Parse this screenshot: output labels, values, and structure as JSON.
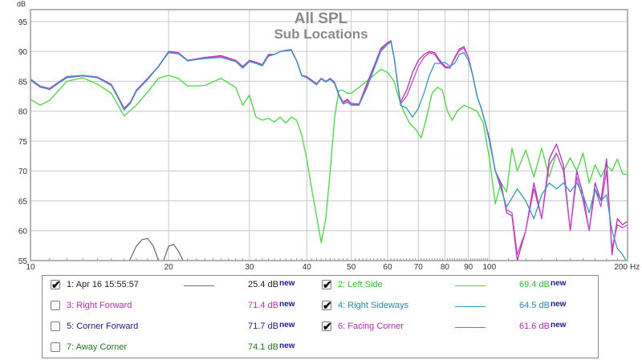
{
  "chart_data": {
    "type": "line",
    "title": "All SPL",
    "subtitle": "Sub Locations",
    "ylabel": "dB",
    "xlabel": "Hz",
    "x_scale": "log",
    "xlim": [
      10,
      200
    ],
    "ylim": [
      55,
      97
    ],
    "grid": true,
    "x_ticks": [
      10,
      20,
      30,
      40,
      50,
      60,
      70,
      80,
      90,
      100,
      200
    ],
    "x_tick_labels": [
      "10",
      "20",
      "30",
      "40",
      "50",
      "60",
      "70",
      "80",
      "90",
      "100",
      "200"
    ],
    "x_minor_ticks": [
      30,
      40,
      50,
      60,
      70,
      80,
      90
    ],
    "y_ticks": [
      55,
      60,
      65,
      70,
      75,
      80,
      85,
      90,
      95
    ],
    "y_tick_labels": [
      "55",
      "60",
      "65",
      "70",
      "75",
      "80",
      "85",
      "90",
      "95"
    ],
    "series": [
      {
        "name": "Apr 16 15:55:57",
        "color": "#707070",
        "x": [
          16.2,
          17.0,
          17.5,
          18.0,
          18.5,
          19.0,
          19.3,
          19.6,
          20.0,
          20.5,
          21.0,
          21.5,
          22.0
        ],
        "y": [
          54.0,
          57.4,
          58.5,
          58.7,
          57.5,
          55.0,
          53.8,
          55.5,
          57.4,
          57.7,
          56.6,
          55.0,
          53.8
        ]
      },
      {
        "name": "Left Side",
        "color": "#3fe03a",
        "x": [
          10,
          10.5,
          11,
          12,
          13,
          14,
          15,
          16,
          17,
          18,
          19,
          20,
          21,
          22,
          24,
          26,
          28,
          29,
          30,
          31,
          32,
          33,
          34,
          35,
          36,
          37,
          38,
          39,
          40,
          41,
          42,
          43,
          44,
          45,
          46,
          47,
          48,
          49,
          50,
          52,
          54,
          56,
          58,
          60,
          62,
          63,
          65,
          67,
          69,
          71,
          73,
          75,
          77,
          79,
          81,
          83,
          85,
          88,
          91,
          94,
          97,
          100,
          103,
          106,
          109,
          112,
          115,
          120,
          125,
          130,
          135,
          140,
          145,
          150,
          155,
          160,
          165,
          170,
          175,
          180,
          185,
          190,
          195,
          200
        ],
        "y": [
          82,
          81,
          81.8,
          85,
          85.6,
          84.5,
          83,
          79.2,
          81,
          83.2,
          85.5,
          86,
          85.5,
          84.2,
          84.3,
          85.5,
          84,
          81,
          82.7,
          79,
          78.5,
          78.8,
          78.2,
          79,
          78,
          79,
          78.5,
          76,
          72,
          67,
          62.5,
          58,
          62,
          70,
          79,
          83.5,
          83.5,
          83,
          83,
          84,
          85,
          86,
          87,
          86.5,
          85,
          83,
          80,
          78,
          77,
          75.5,
          79,
          83,
          84,
          83.5,
          80,
          78.5,
          80,
          81,
          80.5,
          80,
          78,
          72,
          64.5,
          68,
          66.5,
          73.8,
          70,
          73.5,
          69,
          73.8,
          69,
          73,
          70,
          72.2,
          70,
          73,
          68,
          71,
          69,
          71,
          70,
          72,
          69.5,
          69.4
        ]
      },
      {
        "name": "Right Forward",
        "color": "#b92db9",
        "x": [
          10,
          10.5,
          11,
          12,
          13,
          14,
          15,
          15.5,
          16,
          16.5,
          17,
          18,
          19,
          20,
          21,
          22,
          24,
          26,
          28,
          29,
          30,
          31,
          32,
          33,
          34,
          35,
          36,
          37,
          38,
          39,
          40,
          41,
          42,
          43,
          44,
          45,
          46,
          47,
          48,
          49,
          50,
          52,
          54,
          56,
          58,
          60,
          61,
          62,
          63,
          64,
          66,
          68,
          70,
          72,
          74,
          76,
          78,
          80,
          82,
          84,
          86,
          88,
          90,
          92,
          94,
          96,
          98,
          100,
          103,
          106,
          109,
          112,
          115,
          120,
          125,
          130,
          135,
          140,
          145,
          150,
          155,
          160,
          165,
          170,
          175,
          180,
          185,
          190,
          195,
          200
        ],
        "y": [
          85.3,
          84.2,
          83.8,
          85.8,
          86,
          85.7,
          84.5,
          82.5,
          80.5,
          81.5,
          83.5,
          85.5,
          87.5,
          90,
          89.8,
          88.5,
          89,
          89.3,
          88.5,
          87.5,
          88.5,
          88.2,
          87.8,
          89.5,
          89.5,
          90,
          90.2,
          90.3,
          88.5,
          86,
          85.8,
          85.2,
          84.6,
          85.5,
          85,
          85.5,
          84.8,
          82.8,
          81.5,
          82,
          81.3,
          81.2,
          84.5,
          87.5,
          90.5,
          91.5,
          91.8,
          89,
          85,
          81.5,
          83.5,
          86.5,
          88.5,
          89.5,
          90,
          89.8,
          88.5,
          87.5,
          87.3,
          89,
          90.4,
          90.8,
          89,
          86,
          82.5,
          80.5,
          78,
          75.5,
          70,
          68,
          63,
          62.5,
          55,
          60,
          68,
          62,
          72,
          74.5,
          71,
          60,
          70,
          66,
          60,
          68,
          65,
          72,
          56,
          62,
          61,
          61.6
        ]
      },
      {
        "name": "Right Sideways",
        "color": "#2b9ec2",
        "x": [
          10,
          10.5,
          11,
          12,
          13,
          14,
          15,
          15.5,
          16,
          16.5,
          17,
          18,
          19,
          20,
          21,
          22,
          24,
          26,
          28,
          29,
          30,
          31,
          32,
          33,
          34,
          35,
          36,
          37,
          38,
          39,
          40,
          41,
          42,
          43,
          44,
          45,
          46,
          47,
          48,
          49,
          50,
          52,
          54,
          56,
          58,
          60,
          61,
          62,
          63,
          64,
          66,
          68,
          70,
          72,
          74,
          76,
          78,
          80,
          82,
          84,
          86,
          88,
          90,
          92,
          94,
          96,
          98,
          100,
          103,
          106,
          109,
          112,
          115,
          120,
          125,
          130,
          135,
          140,
          145,
          150,
          155,
          160,
          165,
          170,
          175,
          180,
          185,
          190,
          195,
          200
        ],
        "y": [
          85.4,
          84.2,
          83.6,
          85.7,
          86,
          85.6,
          84.3,
          82.3,
          80.2,
          81.3,
          83.3,
          85.3,
          87.5,
          89.8,
          89.6,
          88.5,
          88.8,
          89,
          88.3,
          87.2,
          88.3,
          88,
          87.6,
          89.2,
          89.5,
          90,
          90.1,
          90.2,
          88.5,
          86,
          85.6,
          85,
          84.4,
          85.4,
          85,
          85.3,
          84.6,
          82.6,
          81.2,
          81.5,
          81,
          81,
          83.8,
          87,
          90,
          91.2,
          91.6,
          89,
          85,
          81,
          80.5,
          79,
          80.5,
          83,
          86,
          88,
          88,
          88.2,
          87.5,
          88,
          89.5,
          89.8,
          88.5,
          86,
          82.5,
          80.5,
          78,
          75,
          70,
          67,
          64,
          65.5,
          67,
          65,
          62,
          66,
          68,
          67,
          68,
          66.5,
          68,
          66,
          63,
          67,
          65,
          66,
          60,
          57,
          56,
          54.5
        ]
      },
      {
        "name": "Facing Corner",
        "color": "#cf45cf",
        "x": [
          10,
          10.5,
          11,
          12,
          13,
          14,
          15,
          15.5,
          16,
          16.5,
          17,
          18,
          19,
          20,
          21,
          22,
          24,
          26,
          28,
          29,
          30,
          31,
          32,
          33,
          34,
          35,
          36,
          37,
          38,
          39,
          40,
          41,
          42,
          43,
          44,
          45,
          46,
          47,
          48,
          49,
          50,
          52,
          54,
          56,
          58,
          60,
          61,
          62,
          63,
          64,
          66,
          68,
          70,
          72,
          74,
          76,
          78,
          80,
          82,
          84,
          86,
          88,
          90,
          92,
          94,
          96,
          98,
          100,
          103,
          106,
          109,
          112,
          115,
          120,
          125,
          130,
          135,
          140,
          145,
          150,
          155,
          160,
          165,
          170,
          175,
          180,
          185,
          190,
          195,
          200
        ],
        "y": [
          85.2,
          84,
          83.7,
          85.6,
          85.9,
          85.6,
          84.4,
          82.4,
          80.4,
          81.4,
          83.4,
          85.4,
          87.4,
          89.9,
          89.7,
          88.4,
          88.9,
          89.2,
          88.4,
          87.4,
          88.4,
          88.1,
          87.7,
          89.3,
          89.5,
          90,
          90.2,
          90.2,
          88.4,
          85.9,
          85.7,
          85.1,
          84.5,
          85.4,
          84.9,
          85.4,
          84.7,
          82.7,
          81.4,
          81.8,
          81.2,
          81.1,
          84.2,
          87.3,
          90.3,
          91.4,
          91.7,
          89,
          85,
          81.2,
          82.5,
          85,
          87.5,
          89,
          89.8,
          89.5,
          88.2,
          87.3,
          87.2,
          88.8,
          90.2,
          90.5,
          89,
          86,
          82.5,
          80.5,
          78,
          75.2,
          70,
          67.5,
          63.5,
          63,
          56,
          60,
          67,
          62,
          71,
          73,
          70,
          60,
          69,
          65,
          60,
          67,
          64,
          70,
          57,
          61,
          60.5,
          61
        ]
      }
    ],
    "legend_position": "below"
  },
  "legend": [
    {
      "index": "1:",
      "name": "Apr 16 15:55:57",
      "checked": true,
      "value": "25.4 dB",
      "new": "new",
      "text_color": "#222222",
      "line_color": "#707070"
    },
    {
      "index": "2:",
      "name": "Left Side",
      "checked": true,
      "value": "69.4 dB",
      "new": "new",
      "text_color": "#2bc52b",
      "line_color": "#3fe03a"
    },
    {
      "index": "3:",
      "name": "Right Forward",
      "checked": false,
      "value": "71.4 dB",
      "new": "new",
      "text_color": "#b92db9",
      "line_color": ""
    },
    {
      "index": "4:",
      "name": "Right Sideways",
      "checked": true,
      "value": "64.5 dB",
      "new": "new",
      "text_color": "#1f8fa8",
      "line_color": "#2b9ec2"
    },
    {
      "index": "5:",
      "name": "Corner Forward",
      "checked": false,
      "value": "71.7 dB",
      "new": "new",
      "text_color": "#1c1c8c",
      "line_color": ""
    },
    {
      "index": "6:",
      "name": "Facing Corner",
      "checked": true,
      "value": "61.6 dB",
      "new": "new",
      "text_color": "#b92db9",
      "line_color": "#cf45cf"
    },
    {
      "index": "7:",
      "name": "Away Corner",
      "checked": false,
      "value": "74.1 dB",
      "new": "new",
      "text_color": "#1e7a1e",
      "line_color": ""
    }
  ],
  "colors": {
    "grid": "#c8c8c8",
    "plot_border": "#9a9a9a",
    "title": "#8a8a8a",
    "check": "#111111"
  }
}
